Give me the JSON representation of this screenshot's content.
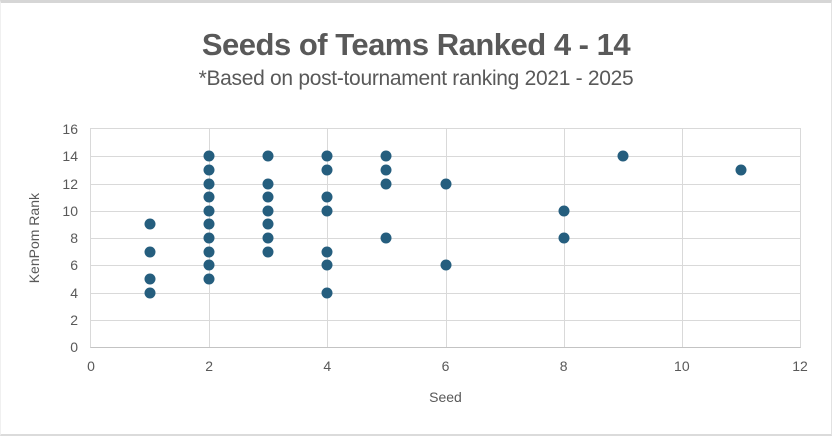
{
  "chart_data": {
    "type": "scatter",
    "title": "Seeds of Teams Ranked 4 - 14",
    "subtitle": "*Based on post-tournament ranking 2021 - 2025",
    "xlabel": "Seed",
    "ylabel": "KenPom Rank",
    "xlim": [
      0,
      12
    ],
    "ylim": [
      0,
      16
    ],
    "xticks": [
      0,
      2,
      4,
      6,
      8,
      10,
      12
    ],
    "yticks": [
      0,
      2,
      4,
      6,
      8,
      10,
      12,
      14,
      16
    ],
    "grid": true,
    "legend": "none",
    "marker_color": "#255E7E",
    "text_color": "#595959",
    "gridline_color": "#D9D9D9",
    "points": [
      [
        1,
        4
      ],
      [
        1,
        5
      ],
      [
        1,
        7
      ],
      [
        1,
        9
      ],
      [
        2,
        5
      ],
      [
        2,
        6
      ],
      [
        2,
        7
      ],
      [
        2,
        8
      ],
      [
        2,
        9
      ],
      [
        2,
        10
      ],
      [
        2,
        11
      ],
      [
        2,
        12
      ],
      [
        2,
        13
      ],
      [
        2,
        14
      ],
      [
        3,
        7
      ],
      [
        3,
        8
      ],
      [
        3,
        9
      ],
      [
        3,
        10
      ],
      [
        3,
        11
      ],
      [
        3,
        12
      ],
      [
        3,
        14
      ],
      [
        4,
        4
      ],
      [
        4,
        6
      ],
      [
        4,
        7
      ],
      [
        4,
        10
      ],
      [
        4,
        11
      ],
      [
        4,
        13
      ],
      [
        4,
        14
      ],
      [
        5,
        8
      ],
      [
        5,
        12
      ],
      [
        5,
        13
      ],
      [
        5,
        14
      ],
      [
        6,
        6
      ],
      [
        6,
        12
      ],
      [
        8,
        8
      ],
      [
        8,
        10
      ],
      [
        9,
        14
      ],
      [
        11,
        13
      ]
    ]
  }
}
